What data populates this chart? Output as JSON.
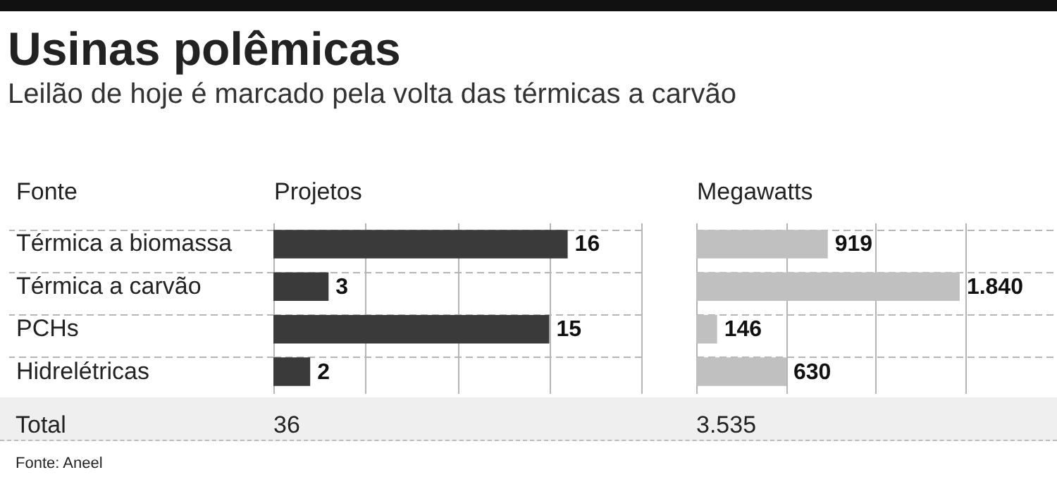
{
  "chart_data": [
    {
      "type": "bar",
      "title": "Usinas polêmicas",
      "subtitle": "Leilão de hoje é marcado pela volta das térmicas a carvão",
      "ylabel": "Fonte",
      "xlabel": "Projetos",
      "orientation": "horizontal",
      "categories": [
        "Térmica a biomassa",
        "Térmica a carvão",
        "PCHs",
        "Hidrelétricas"
      ],
      "values": [
        16,
        3,
        15,
        2
      ],
      "color": "#3a3a3a",
      "data_labels": true,
      "xlim": [
        0,
        20
      ],
      "xticks": [
        {
          "value": 0,
          "label": null
        },
        {
          "value": 5,
          "label": null
        },
        {
          "value": 10,
          "label": null
        },
        {
          "value": 15,
          "label": null
        },
        {
          "value": 20,
          "label": null
        }
      ],
      "grid": true,
      "tick_labels": "y",
      "annotations": [
        "Total",
        "36",
        "Fonte: Aneel"
      ]
    },
    {
      "type": "bar",
      "xlabel": "Megawatts",
      "orientation": "horizontal",
      "categories": [
        null,
        null,
        null,
        null
      ],
      "values": [
        919,
        1840,
        146,
        630
      ],
      "color": "#c0c0c0",
      "value_labels": [
        "919",
        "1.840",
        "146",
        "630"
      ],
      "xlim": [
        0,
        2500
      ],
      "xticks": [
        {
          "value": 0,
          "label": null
        },
        {
          "value": 625,
          "label": null
        },
        {
          "value": 1250,
          "label": null
        },
        {
          "value": 1875,
          "label": null
        }
      ],
      "grid": true,
      "tick_labels": false,
      "annotations": [
        "3.535"
      ]
    }
  ]
}
